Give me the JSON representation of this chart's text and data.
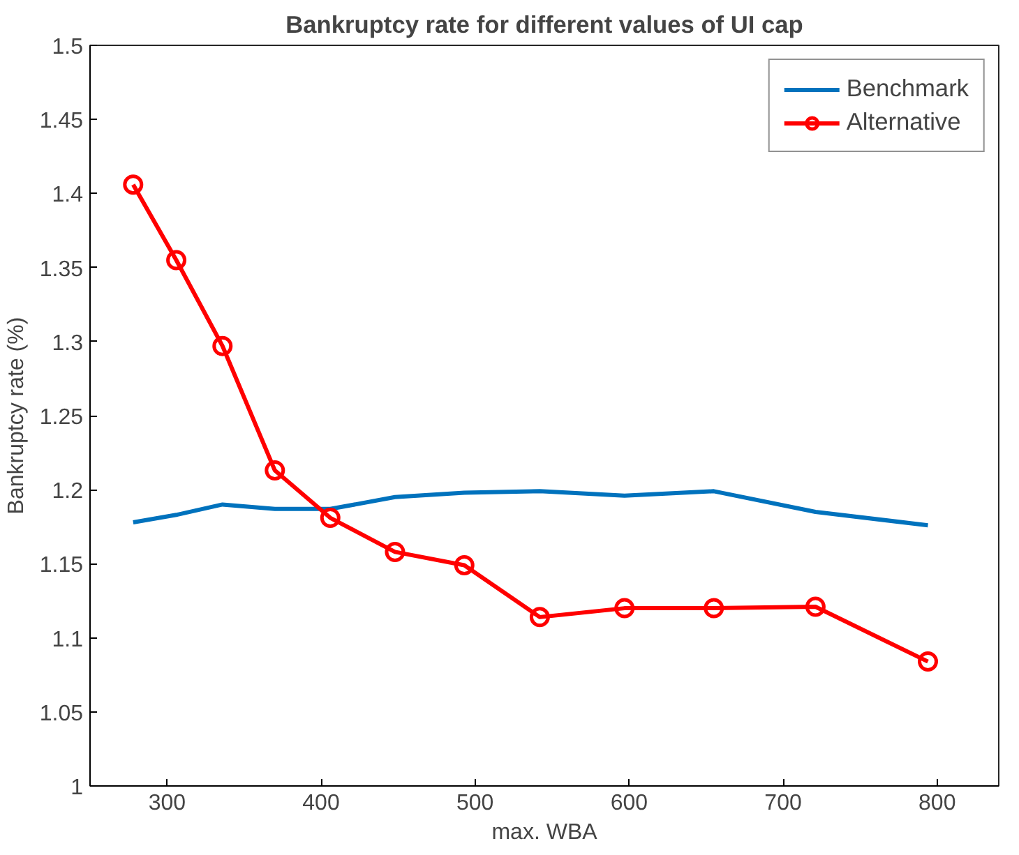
{
  "chart_data": {
    "type": "line",
    "title": "Bankruptcy rate for different values of UI cap",
    "xlabel": "max. WBA",
    "ylabel": "Bankruptcy rate (%)",
    "x": [
      278,
      306,
      336,
      370,
      406,
      448,
      493,
      542,
      597,
      655,
      721,
      794
    ],
    "series": [
      {
        "name": "Benchmark",
        "color": "#0072bd",
        "marker": "none",
        "values": [
          1.178,
          1.183,
          1.19,
          1.187,
          1.187,
          1.195,
          1.198,
          1.199,
          1.196,
          1.199,
          1.185,
          1.176
        ]
      },
      {
        "name": "Alternative",
        "color": "#ff0000",
        "marker": "circle",
        "values": [
          1.406,
          1.355,
          1.297,
          1.213,
          1.181,
          1.158,
          1.149,
          1.114,
          1.12,
          1.12,
          1.121,
          1.084
        ]
      }
    ],
    "xlim": [
      250,
      840
    ],
    "xticks": [
      300,
      400,
      500,
      600,
      700,
      800
    ],
    "ylim": [
      1,
      1.5
    ],
    "yticks": [
      1,
      1.05,
      1.1,
      1.15,
      1.2,
      1.25,
      1.3,
      1.35,
      1.4,
      1.45,
      1.5
    ],
    "grid": false,
    "legend": "top right"
  }
}
